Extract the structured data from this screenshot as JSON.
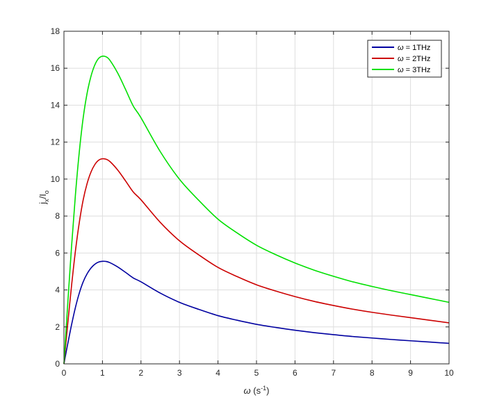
{
  "chart_data": {
    "type": "line",
    "xlabel": {
      "symbol": "ω",
      "text": " (s",
      "sup": "-1",
      "tail": ")"
    },
    "ylabel": {
      "main": "j",
      "sub1": "x",
      "mid": "/I",
      "sub2": "o"
    },
    "xlim": [
      0,
      10
    ],
    "ylim": [
      0,
      18
    ],
    "xticks": [
      "0",
      "1",
      "2",
      "3",
      "4",
      "5",
      "6",
      "7",
      "8",
      "9",
      "10"
    ],
    "yticks": [
      "0",
      "2",
      "4",
      "6",
      "8",
      "10",
      "12",
      "14",
      "16",
      "18"
    ],
    "grid": true,
    "legend_position": "top-right",
    "x": [
      0,
      0.05,
      0.1,
      0.2,
      0.3,
      0.4,
      0.5,
      0.6,
      0.7,
      0.8,
      0.9,
      1.0,
      1.1,
      1.2,
      1.4,
      1.6,
      1.8,
      2.0,
      2.5,
      3.0,
      3.5,
      4.0,
      4.5,
      5.0,
      5.5,
      6.0,
      6.5,
      7.0,
      7.5,
      8.0,
      8.5,
      9.0,
      9.5,
      10.0
    ],
    "series": [
      {
        "name": "ω = 1THz",
        "color": "#0000a0",
        "values": [
          0,
          0.56,
          1.1,
          2.14,
          3.07,
          3.84,
          4.44,
          4.87,
          5.18,
          5.39,
          5.51,
          5.55,
          5.54,
          5.47,
          5.24,
          4.95,
          4.65,
          4.44,
          3.83,
          3.33,
          2.95,
          2.61,
          2.36,
          2.14,
          1.97,
          1.82,
          1.69,
          1.58,
          1.48,
          1.4,
          1.32,
          1.25,
          1.18,
          1.11
        ]
      },
      {
        "name": "ω = 2THz",
        "color": "#cc0000",
        "values": [
          0,
          1.12,
          2.2,
          4.28,
          6.14,
          7.67,
          8.88,
          9.75,
          10.37,
          10.78,
          11.02,
          11.1,
          11.07,
          10.94,
          10.48,
          9.9,
          9.3,
          8.88,
          7.66,
          6.66,
          5.9,
          5.22,
          4.72,
          4.28,
          3.94,
          3.64,
          3.38,
          3.16,
          2.96,
          2.79,
          2.64,
          2.5,
          2.36,
          2.22
        ]
      },
      {
        "name": "ω = 3THz",
        "color": "#00e000",
        "values": [
          0,
          1.67,
          3.3,
          6.42,
          9.2,
          11.5,
          13.32,
          14.63,
          15.55,
          16.17,
          16.53,
          16.65,
          16.61,
          16.41,
          15.72,
          14.85,
          13.95,
          13.32,
          11.49,
          9.99,
          8.85,
          7.83,
          7.08,
          6.42,
          5.91,
          5.46,
          5.07,
          4.74,
          4.44,
          4.19,
          3.96,
          3.75,
          3.54,
          3.33
        ]
      }
    ]
  }
}
